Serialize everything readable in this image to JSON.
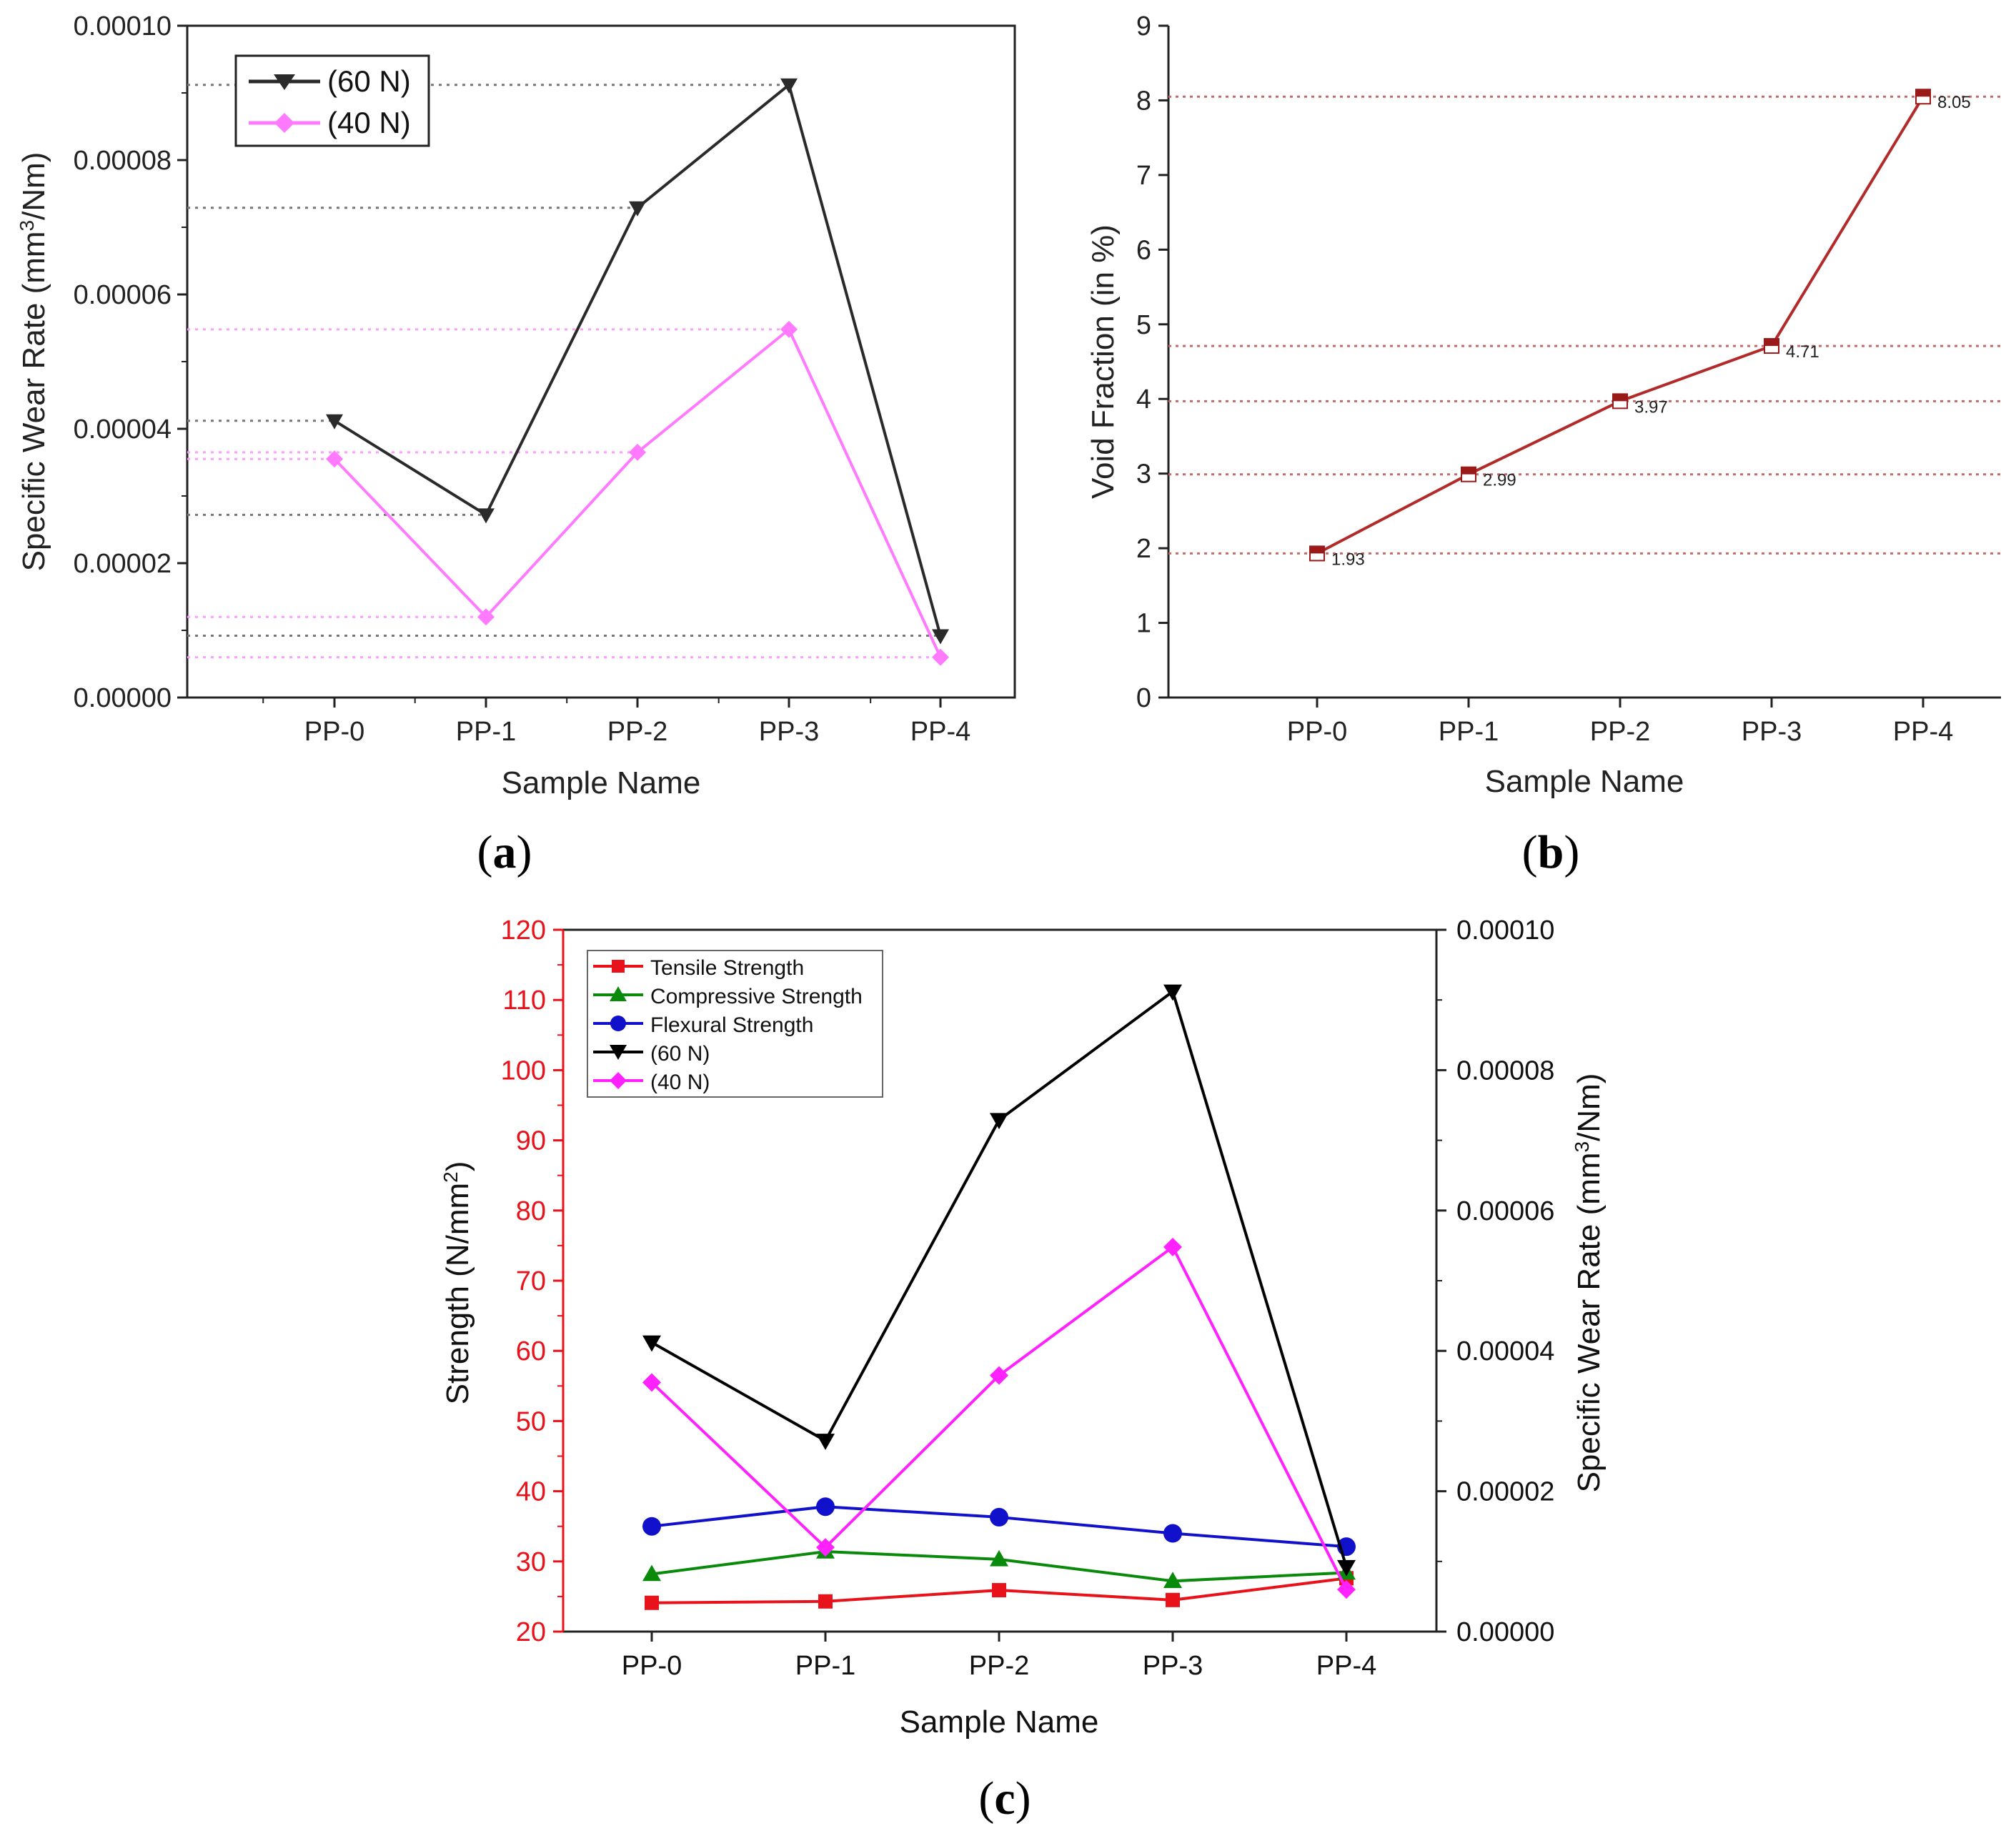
{
  "panels": {
    "a": {
      "label_open": "(",
      "label_letter": "a",
      "label_close": ")"
    },
    "b": {
      "label_open": "(",
      "label_letter": "b",
      "label_close": ")"
    },
    "c": {
      "label_open": "(",
      "label_letter": "c",
      "label_close": ")"
    }
  },
  "chart_data": [
    {
      "id": "a",
      "type": "line",
      "title": "",
      "xlabel": "Sample Name",
      "ylabel_parts": [
        "Specific Wear Rate (mm",
        "3",
        "/Nm)"
      ],
      "categories": [
        "PP-0",
        "PP-1",
        "PP-2",
        "PP-3",
        "PP-4"
      ],
      "ylim": [
        0,
        0.0001
      ],
      "yticks": [
        "0.00000",
        "0.00002",
        "0.00004",
        "0.00006",
        "0.00008",
        "0.00010"
      ],
      "grid": false,
      "reference_lines": true,
      "legend_position": "top-left",
      "series": [
        {
          "name": "(60 N)",
          "color": "#2a2a2a",
          "marker": "triangle-down",
          "values": [
            4.12e-05,
            2.72e-05,
            7.29e-05,
            9.12e-05,
            9.2e-06
          ]
        },
        {
          "name": "(40 N)",
          "color": "#ff7aff",
          "marker": "diamond",
          "values": [
            3.55e-05,
            1.2e-05,
            3.65e-05,
            5.48e-05,
            6e-06
          ]
        }
      ]
    },
    {
      "id": "b",
      "type": "line",
      "title": "",
      "xlabel": "Sample Name",
      "ylabel": "Void Fraction (in %)",
      "categories": [
        "PP-0",
        "PP-1",
        "PP-2",
        "PP-3",
        "PP-4"
      ],
      "ylim": [
        0,
        9
      ],
      "yticks": [
        "0",
        "1",
        "2",
        "3",
        "4",
        "5",
        "6",
        "7",
        "8",
        "9"
      ],
      "grid": false,
      "reference_lines": true,
      "series": [
        {
          "name": "Void Fraction",
          "color": "#b22a2a",
          "marker": "half-square",
          "values": [
            1.93,
            2.99,
            3.97,
            4.71,
            8.05
          ],
          "labels": [
            "1.93",
            "2.99",
            "3.97",
            "4.71",
            "8.05"
          ]
        }
      ]
    },
    {
      "id": "c",
      "type": "line",
      "title": "",
      "xlabel": "Sample Name",
      "ylabel_parts": [
        "Strength (N/mm",
        "2",
        ")"
      ],
      "y2label_parts": [
        "Specific Wear Rate (mm",
        "3",
        "/Nm)"
      ],
      "categories": [
        "PP-0",
        "PP-1",
        "PP-2",
        "PP-3",
        "PP-4"
      ],
      "ylim": [
        20,
        120
      ],
      "yticks": [
        "20",
        "30",
        "40",
        "50",
        "60",
        "70",
        "80",
        "90",
        "100",
        "110",
        "120"
      ],
      "y2lim": [
        0,
        0.0001
      ],
      "y2ticks": [
        "0.00000",
        "0.00002",
        "0.00004",
        "0.00006",
        "0.00008",
        "0.00010"
      ],
      "left_axis_color": "#e8121a",
      "grid": false,
      "legend_position": "top-left",
      "series": [
        {
          "name": "Tensile Strength",
          "axis": "left",
          "color": "#e8121a",
          "marker": "square",
          "values": [
            24.1,
            24.3,
            25.9,
            24.5,
            27.6
          ]
        },
        {
          "name": "Compressive Strength",
          "axis": "left",
          "color": "#0a8a0a",
          "marker": "triangle-up",
          "values": [
            28.2,
            31.4,
            30.3,
            27.2,
            28.4
          ]
        },
        {
          "name": "Flexural Strength",
          "axis": "left",
          "color": "#1111cc",
          "marker": "circle",
          "values": [
            35.0,
            37.8,
            36.3,
            34.0,
            32.1
          ]
        },
        {
          "name": "(60 N)",
          "axis": "right",
          "color": "#000000",
          "marker": "triangle-down",
          "values": [
            4.12e-05,
            2.72e-05,
            7.29e-05,
            9.12e-05,
            9.2e-06
          ]
        },
        {
          "name": "(40 N)",
          "axis": "right",
          "color": "#ff22ff",
          "marker": "diamond",
          "values": [
            3.55e-05,
            1.2e-05,
            3.65e-05,
            5.48e-05,
            6e-06
          ]
        }
      ]
    }
  ]
}
